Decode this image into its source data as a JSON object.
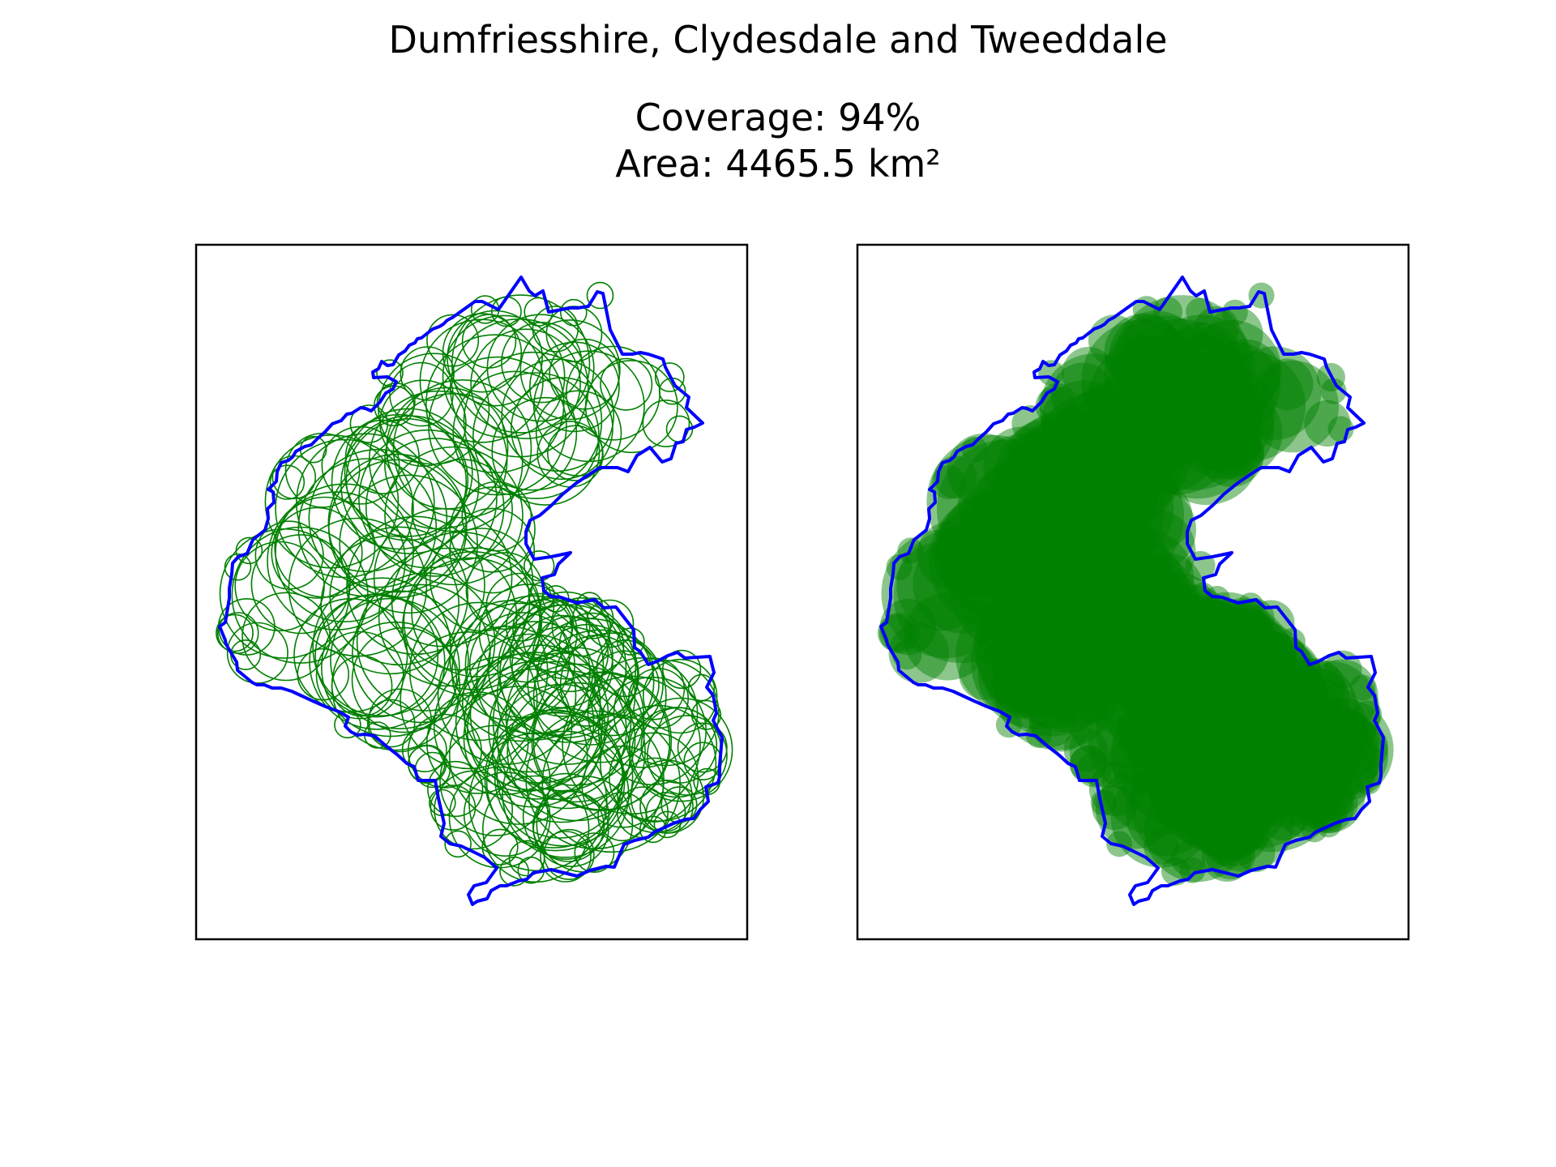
{
  "figure": {
    "title": "Dumfriesshire, Clydesdale and Tweeddale",
    "coverage_text": "Coverage: 94%",
    "area_text": "Area: 4465.5 km²"
  },
  "colors": {
    "boundary": "#0000ff",
    "circles": "#008000",
    "frame": "#000000",
    "background": "#ffffff"
  },
  "panels": [
    {
      "name": "circles-outline",
      "style": "outline"
    },
    {
      "name": "circles-filled",
      "style": "filled-translucent"
    }
  ]
}
